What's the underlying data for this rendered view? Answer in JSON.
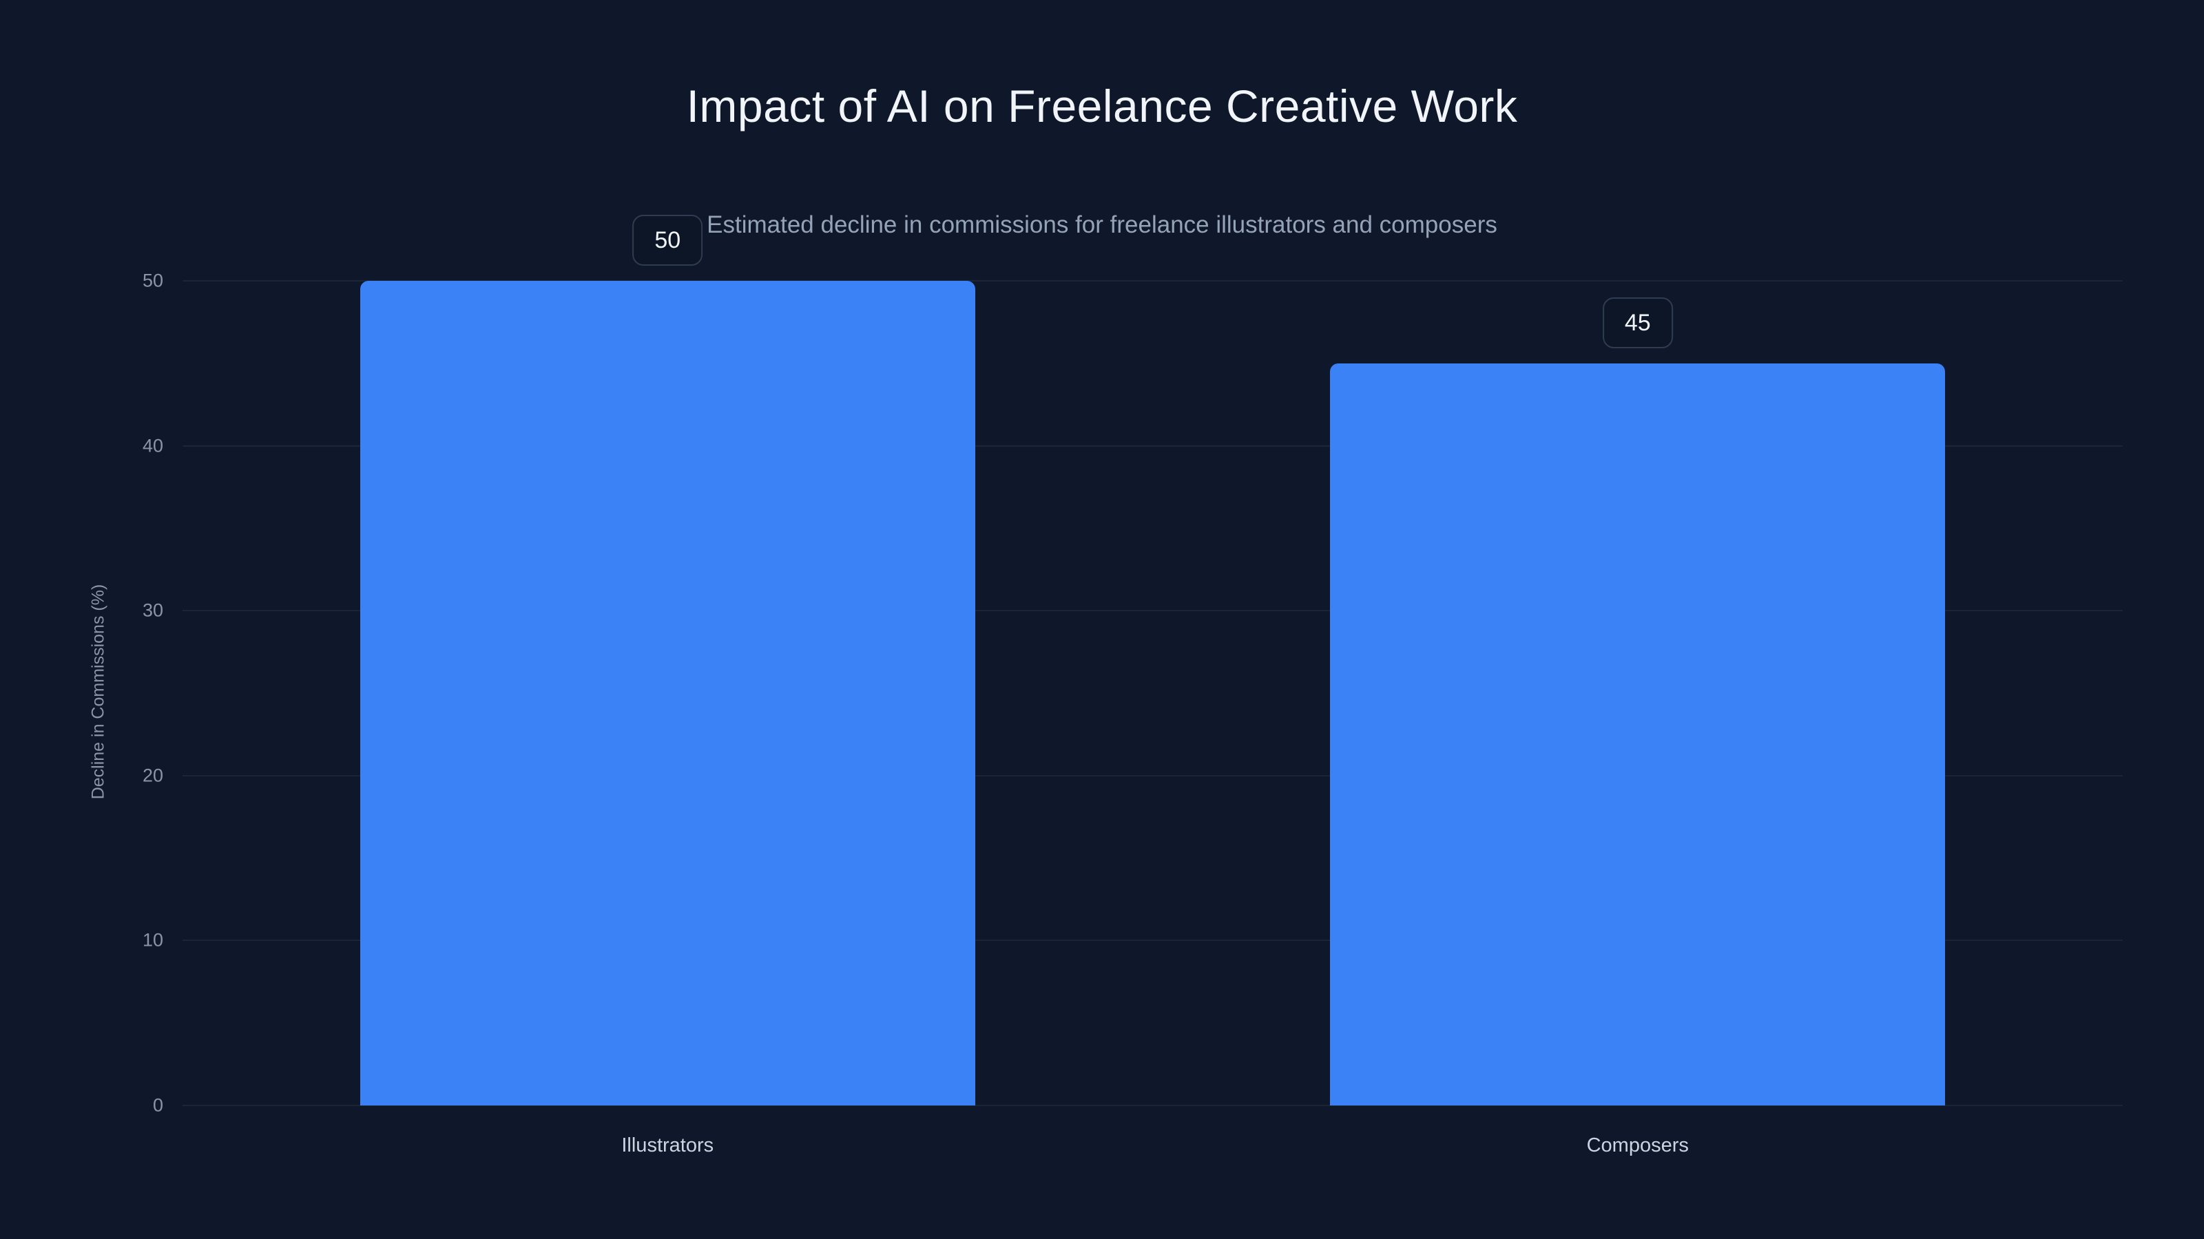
{
  "chart_data": {
    "type": "bar",
    "title": "Impact of AI on Freelance Creative Work",
    "subtitle": "Estimated decline in commissions for freelance illustrators and composers",
    "xlabel": "",
    "ylabel": "Decline in Commissions (%)",
    "categories": [
      "Illustrators",
      "Composers"
    ],
    "values": [
      50,
      45
    ],
    "value_labels": [
      "50",
      "45"
    ],
    "ylim": [
      0,
      50
    ],
    "yticks": [
      0,
      10,
      20,
      30,
      40,
      50
    ],
    "grid": true,
    "legend": false,
    "colors": {
      "bar": "#3b82f6",
      "background": "#0f172a",
      "grid": "#1b2534",
      "title_text": "#f1f5f9",
      "subtitle_text": "#94a3b8",
      "axis_text": "#8b96a5",
      "category_text": "#cbd5e1",
      "badge_border": "#2e3c52",
      "badge_text": "#f1f5f9"
    }
  }
}
